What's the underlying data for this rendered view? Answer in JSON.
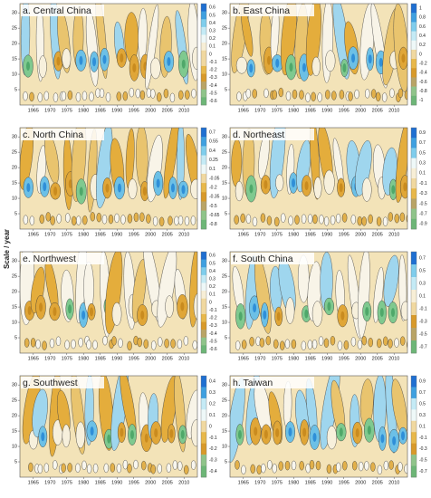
{
  "y_label": "Scale / year",
  "chart_data": [
    {
      "type": "contour",
      "title": "a. Central China",
      "xlim": [
        1961,
        2014
      ],
      "ylim": [
        0,
        33
      ],
      "xticks": [
        1965,
        1970,
        1975,
        1980,
        1985,
        1990,
        1995,
        2000,
        2005,
        2010
      ],
      "yticks": [
        5,
        10,
        15,
        20,
        25,
        30
      ],
      "colorbar_ticks": [
        0.6,
        0.5,
        0.4,
        0.3,
        0.2,
        0.1,
        0,
        -0.1,
        -0.2,
        -0.3,
        -0.4,
        -0.5,
        -0.6
      ]
    },
    {
      "type": "contour",
      "title": "b. East China",
      "xlim": [
        1961,
        2014
      ],
      "ylim": [
        0,
        33
      ],
      "xticks": [
        1965,
        1970,
        1975,
        1980,
        1985,
        1990,
        1995,
        2000,
        2005,
        2010
      ],
      "yticks": [
        5,
        10,
        15,
        20,
        25,
        30
      ],
      "colorbar_ticks": [
        1,
        0.8,
        0.6,
        0.4,
        0.2,
        0,
        -0.2,
        -0.4,
        -0.6,
        -0.8,
        -1
      ]
    },
    {
      "type": "contour",
      "title": "c. North China",
      "xlim": [
        1961,
        2014
      ],
      "ylim": [
        0,
        33
      ],
      "xticks": [
        1965,
        1970,
        1975,
        1980,
        1985,
        1990,
        1995,
        2000,
        2005,
        2010
      ],
      "yticks": [
        5,
        10,
        15,
        20,
        25,
        30
      ],
      "colorbar_ticks": [
        0.7,
        0.55,
        0.4,
        0.25,
        0.1,
        -0.05,
        -0.2,
        -0.35,
        -0.5,
        -0.65,
        -0.8
      ]
    },
    {
      "type": "contour",
      "title": "d. Northeast",
      "xlim": [
        1961,
        2014
      ],
      "ylim": [
        0,
        33
      ],
      "xticks": [
        1965,
        1970,
        1975,
        1980,
        1985,
        1990,
        1995,
        2000,
        2005,
        2010
      ],
      "yticks": [
        5,
        10,
        15,
        20,
        25,
        30
      ],
      "colorbar_ticks": [
        0.9,
        0.7,
        0.5,
        0.3,
        0.1,
        -0.1,
        -0.3,
        -0.5,
        -0.7,
        -0.9
      ]
    },
    {
      "type": "contour",
      "title": "e. Northwest",
      "xlim": [
        1961,
        2014
      ],
      "ylim": [
        0,
        33
      ],
      "xticks": [
        1965,
        1970,
        1975,
        1980,
        1985,
        1990,
        1995,
        2000,
        2005,
        2010
      ],
      "yticks": [
        5,
        10,
        15,
        20,
        25,
        30
      ],
      "colorbar_ticks": [
        0.6,
        0.5,
        0.4,
        0.3,
        0.2,
        0.1,
        0,
        -0.1,
        -0.2,
        -0.3,
        -0.4,
        -0.5,
        -0.6
      ]
    },
    {
      "type": "contour",
      "title": "f. South China",
      "xlim": [
        1961,
        2014
      ],
      "ylim": [
        0,
        33
      ],
      "xticks": [
        1965,
        1970,
        1975,
        1980,
        1985,
        1990,
        1995,
        2000,
        2005,
        2010
      ],
      "yticks": [
        5,
        10,
        15,
        20,
        25,
        30
      ],
      "colorbar_ticks": [
        0.7,
        0.5,
        0.3,
        0.1,
        -0.1,
        -0.3,
        -0.5,
        -0.7
      ]
    },
    {
      "type": "contour",
      "title": "g. Southwest",
      "xlim": [
        1961,
        2014
      ],
      "ylim": [
        0,
        33
      ],
      "xticks": [
        1965,
        1970,
        1975,
        1980,
        1985,
        1990,
        1995,
        2000,
        2005,
        2010
      ],
      "yticks": [
        5,
        10,
        15,
        20,
        25,
        30
      ],
      "colorbar_ticks": [
        0.4,
        0.3,
        0.2,
        0.1,
        0,
        -0.1,
        -0.2,
        -0.3,
        -0.4
      ]
    },
    {
      "type": "contour",
      "title": "h. Taiwan",
      "xlim": [
        1961,
        2014
      ],
      "ylim": [
        0,
        33
      ],
      "xticks": [
        1965,
        1970,
        1975,
        1980,
        1985,
        1990,
        1995,
        2000,
        2005,
        2010
      ],
      "yticks": [
        5,
        10,
        15,
        20,
        25,
        30
      ],
      "colorbar_ticks": [
        0.9,
        0.7,
        0.5,
        0.3,
        0.1,
        -0.1,
        -0.3,
        -0.5,
        -0.7
      ]
    }
  ]
}
